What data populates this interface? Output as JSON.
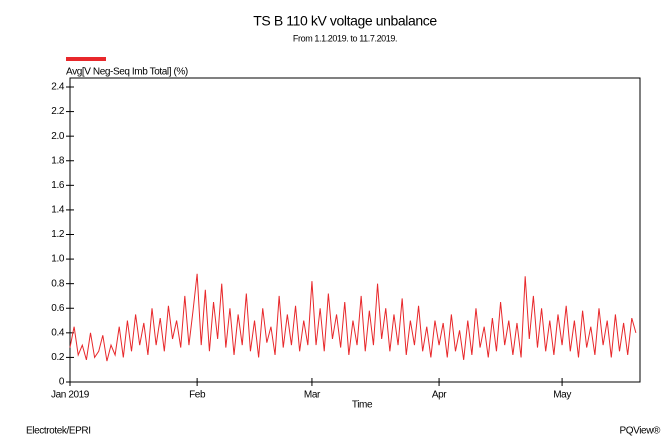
{
  "chart_data": {
    "type": "line",
    "title": "TS B 110 kV voltage unbalance",
    "subtitle": "From 1.1.2019. to 11.7.2019.",
    "x_label": "Time",
    "footer_left": "Electrotek/EPRI",
    "footer_right": "PQView®",
    "xlim": [
      0,
      139
    ],
    "xticks": [
      {
        "value": 0,
        "label": "Jan 2019"
      },
      {
        "value": 31,
        "label": "Feb"
      },
      {
        "value": 59,
        "label": "Mar"
      },
      {
        "value": 90,
        "label": "Apr"
      },
      {
        "value": 120,
        "label": "May"
      }
    ],
    "ylim": [
      0,
      2.4
    ],
    "yticks": [
      0,
      0.2,
      0.4,
      0.6,
      0.8,
      {
        "value": 1,
        "label": "1.0"
      },
      1.2,
      1.4,
      1.6,
      1.8,
      {
        "value": 2,
        "label": "2.0"
      },
      2.2,
      2.4
    ],
    "grid": false,
    "legend_position": "top-left",
    "x": [
      0,
      1,
      2,
      3,
      4,
      5,
      6,
      7,
      8,
      9,
      10,
      11,
      12,
      13,
      14,
      15,
      16,
      17,
      18,
      19,
      20,
      21,
      22,
      23,
      24,
      25,
      26,
      27,
      28,
      29,
      30,
      31,
      32,
      33,
      34,
      35,
      36,
      37,
      38,
      39,
      40,
      41,
      42,
      43,
      44,
      45,
      46,
      47,
      48,
      49,
      50,
      51,
      52,
      53,
      54,
      55,
      56,
      57,
      58,
      59,
      60,
      61,
      62,
      63,
      64,
      65,
      66,
      67,
      68,
      69,
      70,
      71,
      72,
      73,
      74,
      75,
      76,
      77,
      78,
      79,
      80,
      81,
      82,
      83,
      84,
      85,
      86,
      87,
      88,
      89,
      90,
      91,
      92,
      93,
      94,
      95,
      96,
      97,
      98,
      99,
      100,
      101,
      102,
      103,
      104,
      105,
      106,
      107,
      108,
      109,
      110,
      111,
      112,
      113,
      114,
      115,
      116,
      117,
      118,
      119,
      120,
      121,
      122,
      123,
      124,
      125,
      126,
      127,
      128,
      129,
      130,
      131,
      132,
      133,
      134,
      135,
      136,
      137,
      138
    ],
    "series": [
      {
        "name": "Avg[V Neg-Seq Imb Total] (%)",
        "color": "#e8282b",
        "values": [
          0.28,
          0.45,
          0.22,
          0.3,
          0.18,
          0.4,
          0.2,
          0.25,
          0.38,
          0.17,
          0.3,
          0.22,
          0.45,
          0.2,
          0.5,
          0.25,
          0.55,
          0.3,
          0.48,
          0.22,
          0.6,
          0.3,
          0.52,
          0.25,
          0.62,
          0.35,
          0.5,
          0.28,
          0.7,
          0.3,
          0.58,
          0.88,
          0.3,
          0.75,
          0.25,
          0.65,
          0.35,
          0.8,
          0.28,
          0.6,
          0.22,
          0.55,
          0.3,
          0.72,
          0.25,
          0.5,
          0.2,
          0.6,
          0.32,
          0.45,
          0.22,
          0.7,
          0.28,
          0.55,
          0.3,
          0.62,
          0.25,
          0.5,
          0.3,
          0.82,
          0.3,
          0.6,
          0.25,
          0.72,
          0.35,
          0.55,
          0.28,
          0.65,
          0.22,
          0.5,
          0.3,
          0.7,
          0.25,
          0.58,
          0.3,
          0.8,
          0.35,
          0.6,
          0.25,
          0.55,
          0.3,
          0.68,
          0.22,
          0.5,
          0.3,
          0.62,
          0.25,
          0.45,
          0.2,
          0.5,
          0.3,
          0.48,
          0.2,
          0.55,
          0.25,
          0.42,
          0.18,
          0.5,
          0.22,
          0.6,
          0.28,
          0.45,
          0.2,
          0.52,
          0.25,
          0.65,
          0.3,
          0.5,
          0.22,
          0.48,
          0.2,
          0.86,
          0.35,
          0.7,
          0.28,
          0.6,
          0.25,
          0.5,
          0.22,
          0.55,
          0.3,
          0.62,
          0.25,
          0.5,
          0.2,
          0.58,
          0.28,
          0.45,
          0.22,
          0.6,
          0.3,
          0.5,
          0.2,
          0.55,
          0.25,
          0.48,
          0.22,
          0.52,
          0.4
        ]
      }
    ]
  }
}
